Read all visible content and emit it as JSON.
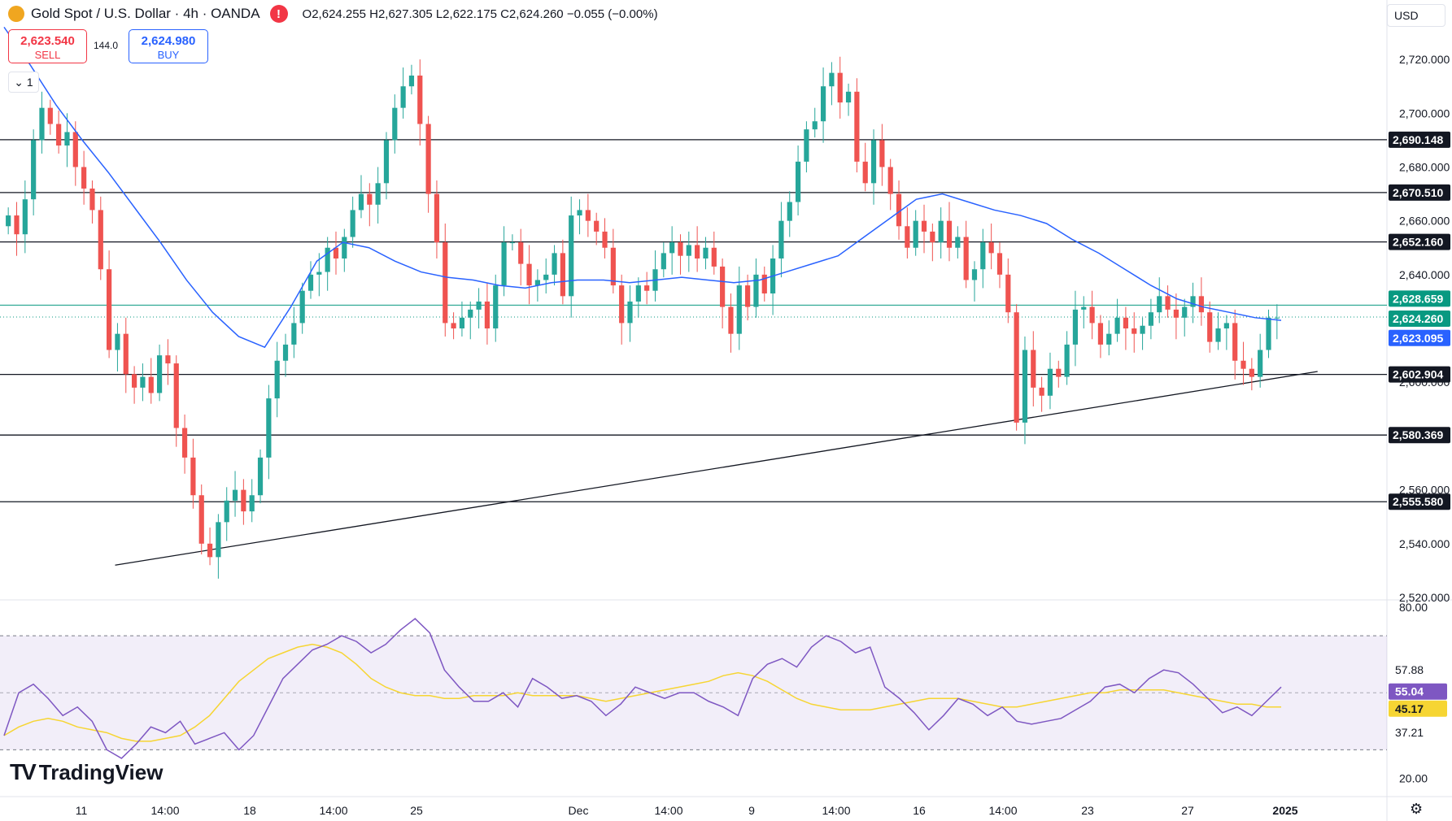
{
  "header": {
    "title": "Gold Spot / U.S. Dollar · 4h · OANDA",
    "warning_glyph": "!",
    "ohlc": "O2,624.255  H2,627.305  L2,622.175  C2,624.260  −0.055 (−0.00%)"
  },
  "trade": {
    "sell_price": "2,623.540",
    "sell_label": "SELL",
    "spread": "144.0",
    "buy_price": "2,624.980",
    "buy_label": "BUY"
  },
  "collapse_label": "⌄ 1",
  "currency": "USD",
  "brand": {
    "mark": "TV",
    "name": "TradingView"
  },
  "colors": {
    "up": "#26a69a",
    "down": "#ef5350",
    "ma": "#2962ff",
    "rsi": "#7e57c2",
    "rsi_ma": "#f6d533",
    "close_line": "#089981"
  },
  "chart_data": [
    {
      "type": "candlestick",
      "symbol": "Gold Spot / U.S. Dollar",
      "interval": "4h",
      "ylim": [
        2520,
        2730
      ],
      "y_ticks": [
        2720,
        2700,
        2680,
        2660,
        2640,
        2600,
        2560,
        2540,
        2520
      ],
      "x_ticks": [
        "11",
        "14:00",
        "18",
        "14:00",
        "25",
        "Dec",
        "14:00",
        "9",
        "14:00",
        "16",
        "14:00",
        "23",
        "27",
        "2025"
      ],
      "price_levels": [
        2690.148,
        2670.51,
        2652.16,
        2602.904,
        2580.369,
        2555.58
      ],
      "price_level_labels": [
        "2,690.148",
        "2,670.510",
        "2,652.160",
        "2,602.904",
        "2,580.369",
        "2,555.580"
      ],
      "current_price_labels": {
        "buy": "2,628.659",
        "last": "2,624.260",
        "sell": "2,623.095"
      },
      "current_prices": {
        "buy": 2628.659,
        "last": 2624.26,
        "sell": 2623.095
      },
      "trendline": {
        "from": [
          0.083,
          2532
        ],
        "to": [
          0.95,
          2604
        ]
      },
      "close_series": [
        2662,
        2655,
        2668,
        2690,
        2702,
        2696,
        2688,
        2693,
        2680,
        2672,
        2664,
        2642,
        2612,
        2618,
        2603,
        2598,
        2602,
        2596,
        2610,
        2607,
        2583,
        2572,
        2558,
        2540,
        2535,
        2548,
        2556,
        2560,
        2552,
        2558,
        2572,
        2594,
        2608,
        2614,
        2622,
        2634,
        2640,
        2641,
        2650,
        2646,
        2654,
        2664,
        2670,
        2666,
        2674,
        2690,
        2702,
        2710,
        2714,
        2696,
        2670,
        2652,
        2622,
        2620,
        2624,
        2627,
        2630,
        2620,
        2636,
        2652,
        2652,
        2644,
        2636,
        2638,
        2640,
        2648,
        2632,
        2662,
        2664,
        2660,
        2656,
        2650,
        2636,
        2622,
        2630,
        2636,
        2634,
        2642,
        2648,
        2652,
        2647,
        2651,
        2646,
        2650,
        2643,
        2628,
        2618,
        2636,
        2628,
        2640,
        2633,
        2646,
        2660,
        2667,
        2682,
        2694,
        2697,
        2710,
        2715,
        2704,
        2708,
        2682,
        2674,
        2690,
        2680,
        2670,
        2658,
        2650,
        2660,
        2656,
        2652,
        2660,
        2650,
        2654,
        2638,
        2642,
        2652,
        2648,
        2640,
        2626,
        2585,
        2612,
        2598,
        2595,
        2605,
        2602,
        2614,
        2627,
        2628,
        2622,
        2614,
        2618,
        2624,
        2620,
        2618,
        2621,
        2626,
        2632,
        2627,
        2624,
        2628,
        2632,
        2626,
        2615,
        2620,
        2622,
        2608,
        2605,
        2602,
        2612,
        2624,
        2624
      ],
      "ma_series": [
        2732,
        2718,
        2703,
        2690,
        2678,
        2665,
        2652,
        2638,
        2626,
        2617,
        2613,
        2628,
        2645,
        2652,
        2650,
        2645,
        2641,
        2639,
        2638,
        2636,
        2635,
        2637,
        2638,
        2638,
        2637,
        2638,
        2639,
        2638,
        2637,
        2638,
        2641,
        2644,
        2647,
        2654,
        2661,
        2668,
        2670,
        2667,
        2664,
        2662,
        2659,
        2653,
        2648,
        2642,
        2636,
        2631,
        2628,
        2626,
        2624,
        2623
      ],
      "rsi_series": [
        35,
        50,
        53,
        48,
        42,
        45,
        40,
        30,
        27,
        32,
        38,
        36,
        40,
        32,
        34,
        36,
        30,
        35,
        45,
        55,
        60,
        65,
        67,
        70,
        68,
        64,
        67,
        72,
        76,
        71,
        58,
        52,
        47,
        47,
        50,
        45,
        55,
        52,
        48,
        49,
        47,
        42,
        46,
        52,
        50,
        48,
        50,
        50,
        47,
        45,
        42,
        55,
        60,
        62,
        59,
        66,
        70,
        68,
        64,
        66,
        52,
        48,
        43,
        37,
        42,
        48,
        46,
        42,
        45,
        40,
        39,
        40,
        41,
        44,
        47,
        52,
        53,
        50,
        55,
        58,
        57,
        53,
        48,
        43,
        45,
        42,
        47,
        52
      ],
      "rsi_ma_series": [
        35,
        38,
        40,
        41,
        40,
        38,
        37,
        36,
        34,
        33,
        33,
        34,
        35,
        38,
        42,
        48,
        54,
        58,
        62,
        64,
        66,
        67,
        66,
        64,
        60,
        55,
        52,
        50,
        49,
        49,
        48,
        48,
        49,
        49,
        49,
        50,
        49,
        49,
        49,
        49,
        48,
        47,
        48,
        49,
        50,
        51,
        52,
        53,
        54,
        56,
        57,
        56,
        54,
        51,
        48,
        46,
        45,
        44,
        44,
        44,
        45,
        46,
        47,
        48,
        48,
        48,
        47,
        46,
        45,
        45,
        46,
        47,
        48,
        49,
        50,
        50,
        51,
        51,
        51,
        51,
        50,
        49,
        48,
        47,
        46,
        46,
        45,
        45
      ],
      "rsi_ylim": [
        15,
        82
      ],
      "rsi_ticks": [
        80,
        20
      ],
      "rsi_value_labels": {
        "rsi": "55.04",
        "rsi_ma": "45.17",
        "upper": "57.88",
        "lower": "37.21"
      },
      "rsi_bands": [
        70,
        30
      ]
    }
  ]
}
